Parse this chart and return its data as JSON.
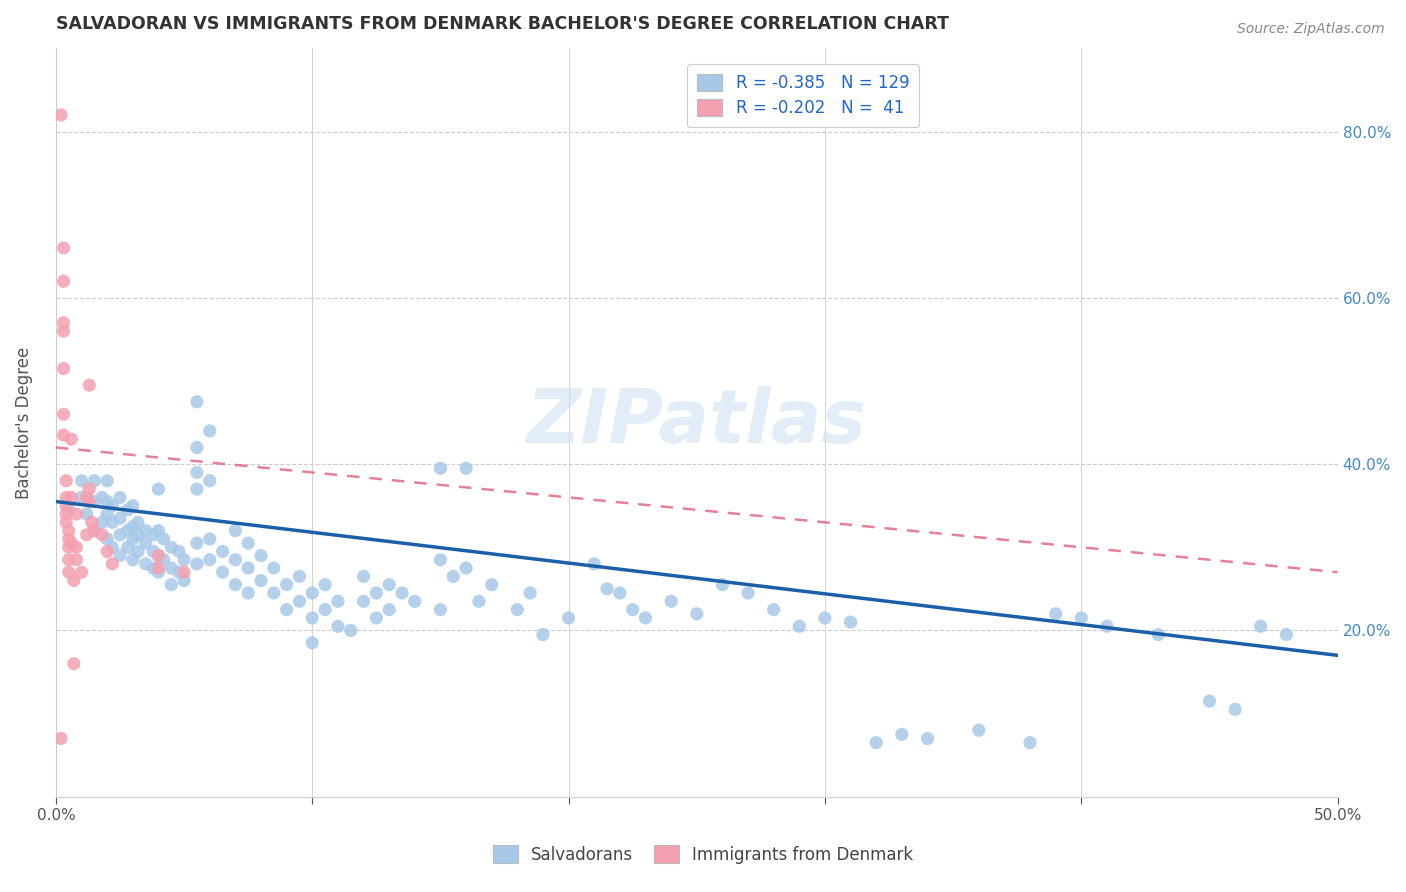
{
  "title": "SALVADORAN VS IMMIGRANTS FROM DENMARK BACHELOR'S DEGREE CORRELATION CHART",
  "source": "Source: ZipAtlas.com",
  "ylabel": "Bachelor's Degree",
  "legend_blue_r": "R = -0.385",
  "legend_blue_n": "N = 129",
  "legend_pink_r": "R = -0.202",
  "legend_pink_n": "N =  41",
  "legend_label_blue": "Salvadorans",
  "legend_label_pink": "Immigrants from Denmark",
  "blue_color": "#a8c8e8",
  "blue_line_color": "#1a5fa8",
  "pink_color": "#f4a0b0",
  "pink_line_color": "#e06080",
  "watermark": "ZIPatlas",
  "blue_scatter": [
    [
      0.5,
      34.5
    ],
    [
      1.0,
      36.0
    ],
    [
      1.0,
      38.0
    ],
    [
      1.2,
      34.0
    ],
    [
      1.5,
      32.0
    ],
    [
      1.5,
      35.5
    ],
    [
      1.5,
      38.0
    ],
    [
      1.8,
      33.0
    ],
    [
      1.8,
      36.0
    ],
    [
      2.0,
      31.0
    ],
    [
      2.0,
      34.0
    ],
    [
      2.0,
      35.5
    ],
    [
      2.0,
      38.0
    ],
    [
      2.2,
      30.0
    ],
    [
      2.2,
      33.0
    ],
    [
      2.2,
      35.0
    ],
    [
      2.5,
      29.0
    ],
    [
      2.5,
      31.5
    ],
    [
      2.5,
      33.5
    ],
    [
      2.5,
      36.0
    ],
    [
      2.8,
      30.0
    ],
    [
      2.8,
      32.0
    ],
    [
      2.8,
      34.5
    ],
    [
      3.0,
      28.5
    ],
    [
      3.0,
      31.0
    ],
    [
      3.0,
      32.5
    ],
    [
      3.0,
      35.0
    ],
    [
      3.2,
      29.5
    ],
    [
      3.2,
      31.5
    ],
    [
      3.2,
      33.0
    ],
    [
      3.5,
      28.0
    ],
    [
      3.5,
      30.5
    ],
    [
      3.5,
      32.0
    ],
    [
      3.8,
      27.5
    ],
    [
      3.8,
      29.5
    ],
    [
      3.8,
      31.5
    ],
    [
      4.0,
      37.0
    ],
    [
      4.0,
      32.0
    ],
    [
      4.0,
      29.0
    ],
    [
      4.0,
      27.0
    ],
    [
      4.2,
      31.0
    ],
    [
      4.2,
      28.5
    ],
    [
      4.5,
      30.0
    ],
    [
      4.5,
      27.5
    ],
    [
      4.5,
      25.5
    ],
    [
      4.8,
      29.5
    ],
    [
      4.8,
      27.0
    ],
    [
      5.0,
      28.5
    ],
    [
      5.0,
      26.0
    ],
    [
      5.5,
      47.5
    ],
    [
      5.5,
      42.0
    ],
    [
      5.5,
      39.0
    ],
    [
      5.5,
      37.0
    ],
    [
      5.5,
      30.5
    ],
    [
      5.5,
      28.0
    ],
    [
      6.0,
      44.0
    ],
    [
      6.0,
      38.0
    ],
    [
      6.0,
      31.0
    ],
    [
      6.0,
      28.5
    ],
    [
      6.5,
      29.5
    ],
    [
      6.5,
      27.0
    ],
    [
      7.0,
      32.0
    ],
    [
      7.0,
      28.5
    ],
    [
      7.0,
      25.5
    ],
    [
      7.5,
      30.5
    ],
    [
      7.5,
      27.5
    ],
    [
      7.5,
      24.5
    ],
    [
      8.0,
      29.0
    ],
    [
      8.0,
      26.0
    ],
    [
      8.5,
      27.5
    ],
    [
      8.5,
      24.5
    ],
    [
      9.0,
      25.5
    ],
    [
      9.0,
      22.5
    ],
    [
      9.5,
      26.5
    ],
    [
      9.5,
      23.5
    ],
    [
      10.0,
      24.5
    ],
    [
      10.0,
      21.5
    ],
    [
      10.0,
      18.5
    ],
    [
      10.5,
      25.5
    ],
    [
      10.5,
      22.5
    ],
    [
      11.0,
      23.5
    ],
    [
      11.0,
      20.5
    ],
    [
      11.5,
      20.0
    ],
    [
      12.0,
      26.5
    ],
    [
      12.0,
      23.5
    ],
    [
      12.5,
      24.5
    ],
    [
      12.5,
      21.5
    ],
    [
      13.0,
      25.5
    ],
    [
      13.0,
      22.5
    ],
    [
      13.5,
      24.5
    ],
    [
      14.0,
      23.5
    ],
    [
      15.0,
      39.5
    ],
    [
      15.0,
      28.5
    ],
    [
      15.0,
      22.5
    ],
    [
      15.5,
      26.5
    ],
    [
      16.0,
      39.5
    ],
    [
      16.0,
      27.5
    ],
    [
      16.5,
      23.5
    ],
    [
      17.0,
      25.5
    ],
    [
      18.0,
      22.5
    ],
    [
      18.5,
      24.5
    ],
    [
      19.0,
      19.5
    ],
    [
      20.0,
      21.5
    ],
    [
      21.0,
      28.0
    ],
    [
      21.5,
      25.0
    ],
    [
      22.0,
      24.5
    ],
    [
      22.5,
      22.5
    ],
    [
      23.0,
      21.5
    ],
    [
      24.0,
      23.5
    ],
    [
      25.0,
      22.0
    ],
    [
      26.0,
      25.5
    ],
    [
      27.0,
      24.5
    ],
    [
      28.0,
      22.5
    ],
    [
      29.0,
      20.5
    ],
    [
      30.0,
      21.5
    ],
    [
      31.0,
      21.0
    ],
    [
      32.0,
      6.5
    ],
    [
      33.0,
      7.5
    ],
    [
      34.0,
      7.0
    ],
    [
      36.0,
      8.0
    ],
    [
      38.0,
      6.5
    ],
    [
      39.0,
      22.0
    ],
    [
      40.0,
      21.5
    ],
    [
      41.0,
      20.5
    ],
    [
      43.0,
      19.5
    ],
    [
      45.0,
      11.5
    ],
    [
      46.0,
      10.5
    ],
    [
      47.0,
      20.5
    ],
    [
      48.0,
      19.5
    ]
  ],
  "pink_scatter": [
    [
      0.2,
      82.0
    ],
    [
      0.2,
      7.0
    ],
    [
      0.3,
      66.0
    ],
    [
      0.3,
      62.0
    ],
    [
      0.3,
      57.0
    ],
    [
      0.3,
      56.0
    ],
    [
      0.3,
      51.5
    ],
    [
      0.3,
      46.0
    ],
    [
      0.3,
      43.5
    ],
    [
      0.4,
      38.0
    ],
    [
      0.4,
      36.0
    ],
    [
      0.4,
      35.0
    ],
    [
      0.4,
      34.0
    ],
    [
      0.4,
      33.0
    ],
    [
      0.5,
      32.0
    ],
    [
      0.5,
      31.0
    ],
    [
      0.5,
      30.0
    ],
    [
      0.5,
      28.5
    ],
    [
      0.5,
      27.0
    ],
    [
      0.6,
      43.0
    ],
    [
      0.6,
      36.0
    ],
    [
      0.6,
      30.5
    ],
    [
      0.7,
      26.0
    ],
    [
      0.7,
      16.0
    ],
    [
      0.8,
      34.0
    ],
    [
      0.8,
      30.0
    ],
    [
      0.8,
      28.5
    ],
    [
      1.0,
      27.0
    ],
    [
      1.2,
      36.0
    ],
    [
      1.2,
      31.5
    ],
    [
      1.3,
      49.5
    ],
    [
      1.3,
      37.0
    ],
    [
      1.3,
      35.5
    ],
    [
      1.4,
      33.0
    ],
    [
      1.5,
      32.0
    ],
    [
      1.8,
      31.5
    ],
    [
      2.0,
      29.5
    ],
    [
      2.2,
      28.0
    ],
    [
      4.0,
      29.0
    ],
    [
      4.0,
      27.5
    ],
    [
      5.0,
      27.0
    ]
  ],
  "xlim": [
    0.0,
    50.0
  ],
  "ylim": [
    0.0,
    90.0
  ],
  "blue_trend": [
    0.0,
    50.0,
    35.5,
    17.0
  ],
  "pink_trend": [
    0.0,
    50.0,
    42.0,
    27.0
  ]
}
